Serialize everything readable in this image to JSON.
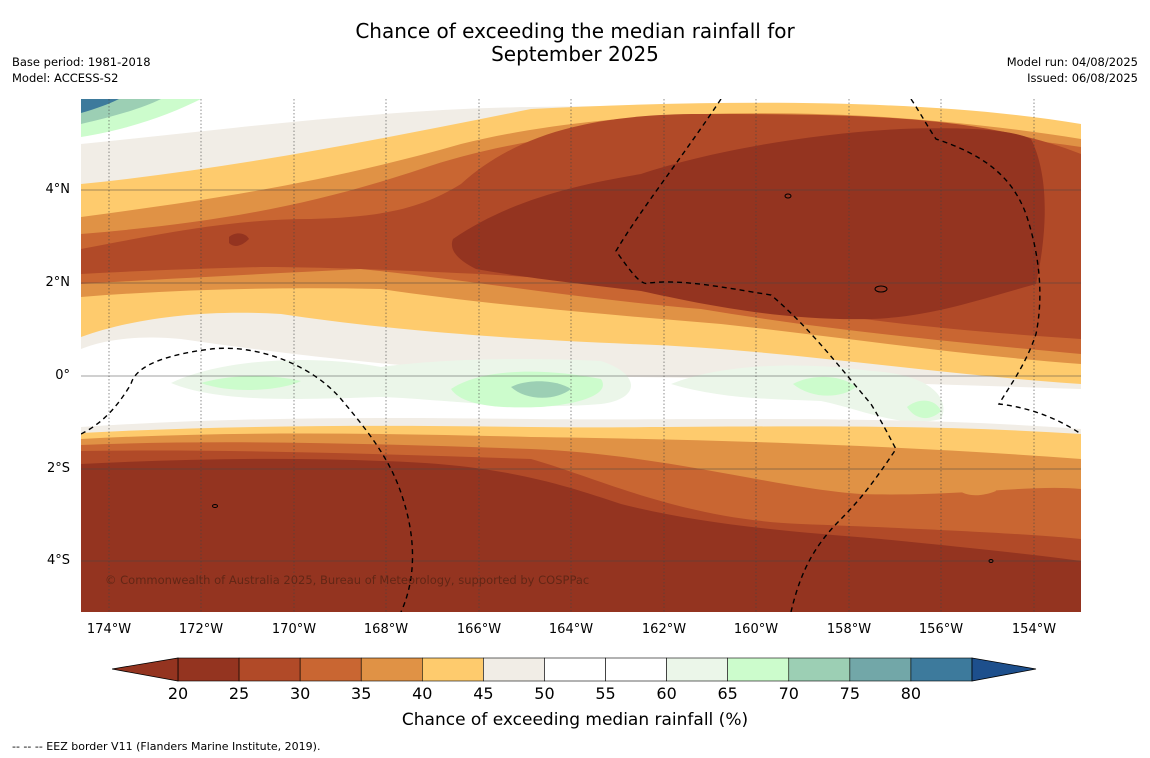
{
  "title_line1": "Chance of exceeding the median rainfall for",
  "title_line2": "September 2025",
  "meta_left": [
    "Base period: 1981-2018",
    "Model: ACCESS-S2"
  ],
  "meta_right": [
    "Model run: 04/08/2025",
    "Issued: 06/08/2025"
  ],
  "copyright": "© Commonwealth of Australia 2025, Bureau of Meteorology, supported by COSPPac",
  "colorbar": {
    "title": "Chance of exceeding median rainfall (%)",
    "ticks": [
      "20",
      "25",
      "30",
      "35",
      "40",
      "45",
      "50",
      "55",
      "60",
      "65",
      "70",
      "75",
      "80"
    ],
    "colors": [
      "#943420",
      "#b14a28",
      "#c96632",
      "#e09245",
      "#fecb6d",
      "#f1ede6",
      "#ffffff",
      "#ffffff",
      "#ebf6e9",
      "#ccfccc",
      "#9ccfb4",
      "#72a7a8",
      "#3d7a9c"
    ],
    "under_color": "#943420",
    "over_color": "#1d4f8c"
  },
  "y_ticks": [
    "4°N",
    "2°N",
    "0°",
    "2°S",
    "4°S"
  ],
  "x_ticks": [
    "174°W",
    "172°W",
    "170°W",
    "168°W",
    "166°W",
    "164°W",
    "162°W",
    "160°W",
    "158°W",
    "156°W",
    "154°W"
  ],
  "eez_note": "--  --  -- EEZ border V11 (Flanders Marine Institute, 2019)."
}
